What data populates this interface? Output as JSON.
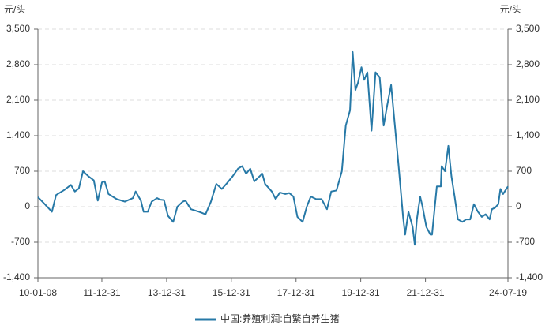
{
  "chart_data": {
    "type": "line",
    "y_label": "元/头",
    "y2_label": "元/头",
    "x": [
      "10-01-08",
      "10-04-01",
      "10-06-15",
      "10-08-01",
      "10-11-01",
      "11-01-15",
      "11-03-01",
      "11-04-15",
      "11-06-01",
      "11-08-01",
      "11-10-01",
      "11-11-15",
      "12-01-01",
      "12-02-01",
      "12-03-15",
      "12-06-15",
      "12-09-15",
      "12-12-15",
      "13-01-15",
      "13-03-15",
      "13-04-15",
      "13-06-01",
      "13-07-15",
      "13-09-15",
      "13-10-15",
      "13-12-01",
      "14-01-15",
      "14-03-15",
      "14-05-01",
      "14-07-01",
      "14-08-01",
      "14-10-01",
      "15-01-01",
      "15-03-15",
      "15-05-15",
      "15-07-15",
      "15-09-15",
      "15-11-15",
      "16-01-15",
      "16-03-15",
      "16-05-01",
      "16-06-15",
      "16-08-01",
      "16-09-15",
      "16-12-15",
      "17-01-15",
      "17-04-01",
      "17-05-15",
      "17-07-01",
      "17-09-01",
      "17-10-15",
      "17-12-01",
      "18-01-15",
      "18-03-15",
      "18-05-01",
      "18-06-15",
      "18-08-15",
      "18-10-15",
      "18-12-15",
      "19-02-01",
      "19-04-01",
      "19-06-01",
      "19-07-15",
      "19-09-01",
      "19-10-01",
      "19-11-01",
      "19-12-01",
      "20-01-08",
      "20-02-08",
      "20-03-15",
      "20-05-01",
      "20-06-15",
      "20-08-01",
      "20-09-15",
      "20-10-25",
      "20-12-08",
      "21-01-25",
      "21-03-08",
      "21-04-22",
      "21-05-15",
      "21-06-22",
      "21-08-08",
      "21-09-01",
      "21-09-25",
      "21-11-01",
      "21-11-28",
      "22-01-10",
      "22-02-25",
      "22-03-15",
      "22-05-08",
      "22-06-22",
      "22-07-01",
      "22-08-08",
      "22-09-15",
      "22-10-20",
      "22-11-25",
      "23-01-01",
      "23-02-20",
      "23-04-05",
      "23-05-20",
      "23-07-01",
      "23-08-15",
      "23-09-28",
      "23-11-10",
      "23-12-25",
      "24-01-20",
      "24-02-25",
      "24-04-01",
      "24-04-25",
      "24-05-25",
      "24-07-19"
    ],
    "series": [
      {
        "name": "中国:养殖利润:自繁自养生猪",
        "color": "#2779a7",
        "values": [
          190,
          40,
          -100,
          230,
          330,
          430,
          300,
          360,
          700,
          600,
          520,
          120,
          480,
          500,
          250,
          150,
          100,
          170,
          300,
          120,
          -100,
          -100,
          100,
          170,
          140,
          130,
          -180,
          -300,
          0,
          100,
          120,
          -50,
          -100,
          -150,
          100,
          450,
          350,
          470,
          600,
          750,
          800,
          650,
          750,
          500,
          650,
          450,
          300,
          150,
          280,
          250,
          270,
          200,
          -200,
          -300,
          0,
          200,
          150,
          150,
          -50,
          300,
          320,
          700,
          1600,
          1900,
          3050,
          2300,
          2450,
          2750,
          2500,
          2650,
          1500,
          2650,
          2550,
          1600,
          2000,
          2400,
          1500,
          700,
          -200,
          -550,
          -100,
          -400,
          -750,
          -250,
          200,
          0,
          -400,
          -550,
          -550,
          400,
          400,
          800,
          700,
          1200,
          600,
          200,
          -250,
          -300,
          -250,
          -250,
          50,
          -100,
          -200,
          -150,
          -250,
          -50,
          -20,
          50,
          350,
          250,
          400
        ]
      }
    ],
    "xlim": [
      "10-01-08",
      "24-07-19"
    ],
    "xticks": [
      "10-01-08",
      "11-12-31",
      "13-12-31",
      "15-12-31",
      "17-12-31",
      "19-12-31",
      "21-12-31",
      "24-07-19"
    ],
    "ylim": [
      -1400,
      3500
    ],
    "yticks": [
      {
        "value": 3500,
        "label": "3,500"
      },
      {
        "value": 2800,
        "label": "2,800"
      },
      {
        "value": 2100,
        "label": "2,100"
      },
      {
        "value": 1400,
        "label": "1,400"
      },
      700,
      0,
      -700,
      {
        "value": -1400,
        "label": "-1,400"
      }
    ],
    "y2lim": [
      -1400,
      3500
    ],
    "y2ticks": [
      {
        "value": 3500,
        "label": "3,500"
      },
      {
        "value": 2800,
        "label": "2,800"
      },
      {
        "value": 2100,
        "label": "2,100"
      },
      {
        "value": 1400,
        "label": "1,400"
      },
      700,
      0,
      -700,
      {
        "value": -1400,
        "label": "-1,400"
      }
    ],
    "grid": true,
    "legend": "bottom"
  }
}
